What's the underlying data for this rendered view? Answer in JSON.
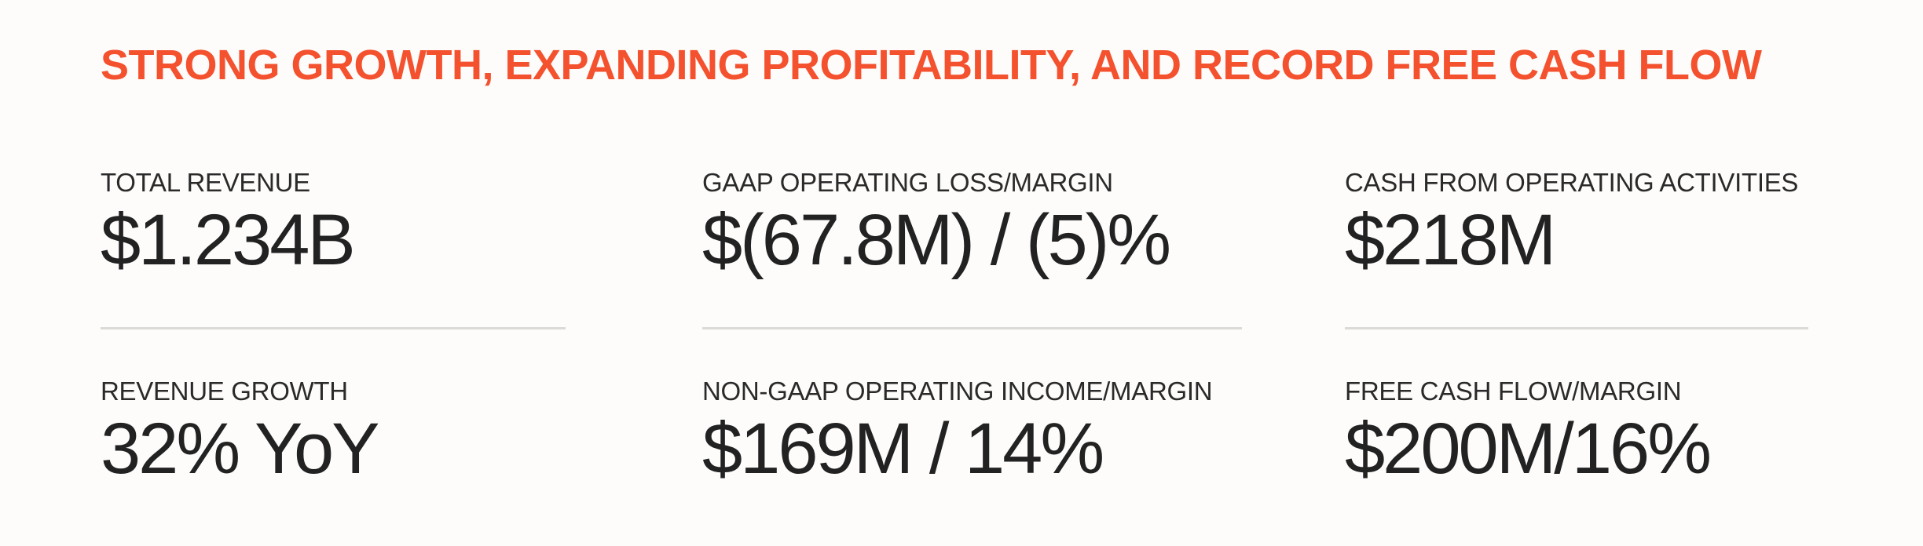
{
  "title": "STRONG GROWTH, EXPANDING PROFITABILITY, AND RECORD FREE CASH FLOW",
  "metrics": [
    {
      "label": "TOTAL REVENUE",
      "value": "$1.234B"
    },
    {
      "label": "GAAP OPERATING LOSS/MARGIN",
      "value": "$(67.8M) / (5)%"
    },
    {
      "label": "CASH FROM OPERATING ACTIVITIES",
      "value": "$218M"
    },
    {
      "label": "REVENUE GROWTH",
      "value": "32% YoY"
    },
    {
      "label": "NON-GAAP OPERATING INCOME/MARGIN",
      "value": "$169M / 14%"
    },
    {
      "label": "FREE CASH FLOW/MARGIN",
      "value": "$200M/16%"
    }
  ]
}
